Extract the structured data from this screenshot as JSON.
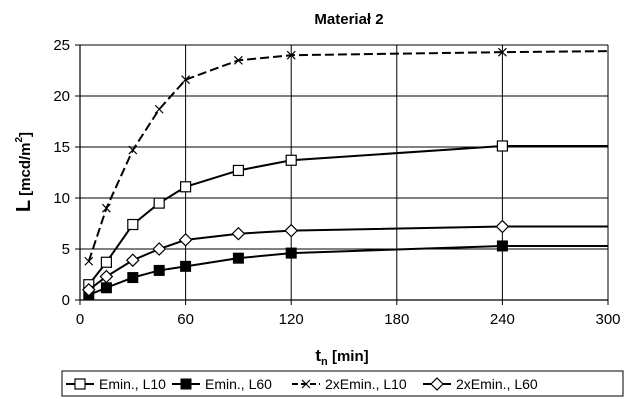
{
  "chart_data": {
    "type": "line",
    "title": "Materiał 2",
    "ylabel_main": "L",
    "ylabel_unit": "[mcd/m",
    "ylabel_sup": "2",
    "ylabel_close": "]",
    "xlabel_main": "t",
    "xlabel_sub": "n",
    "xlabel_unit": " [min]",
    "xlim": [
      0,
      300
    ],
    "ylim": [
      0,
      25
    ],
    "xticks": [
      0,
      60,
      120,
      180,
      240,
      300
    ],
    "yticks": [
      0,
      5,
      10,
      15,
      20,
      25
    ],
    "grid": true,
    "legend_position": "bottom",
    "series": [
      {
        "name": "Emin., L10",
        "marker": "square-open",
        "x": [
          5,
          15,
          30,
          45,
          60,
          90,
          120,
          240
        ],
        "y": [
          1.5,
          3.7,
          7.4,
          9.5,
          11.1,
          12.7,
          13.7,
          15.1
        ],
        "extend_to": [
          300,
          15.1
        ]
      },
      {
        "name": "Emin., L60",
        "marker": "square-filled",
        "x": [
          5,
          15,
          30,
          45,
          60,
          90,
          120,
          240
        ],
        "y": [
          0.5,
          1.2,
          2.2,
          2.9,
          3.3,
          4.1,
          4.6,
          5.3
        ],
        "extend_to": [
          300,
          5.3
        ]
      },
      {
        "name": "2xEmin., L10",
        "marker": "x",
        "dash": "9,4",
        "x": [
          5,
          15,
          30,
          45,
          60,
          90,
          120,
          240
        ],
        "y": [
          3.8,
          9.0,
          14.7,
          18.7,
          21.6,
          23.5,
          24.0,
          24.3
        ],
        "extend_to": [
          300,
          24.4
        ]
      },
      {
        "name": "2xEmin., L60",
        "marker": "diamond-open",
        "x": [
          5,
          15,
          30,
          45,
          60,
          90,
          120,
          240
        ],
        "y": [
          1.0,
          2.3,
          3.9,
          5.0,
          5.9,
          6.5,
          6.8,
          7.2
        ],
        "extend_to": [
          300,
          7.2
        ]
      }
    ]
  }
}
